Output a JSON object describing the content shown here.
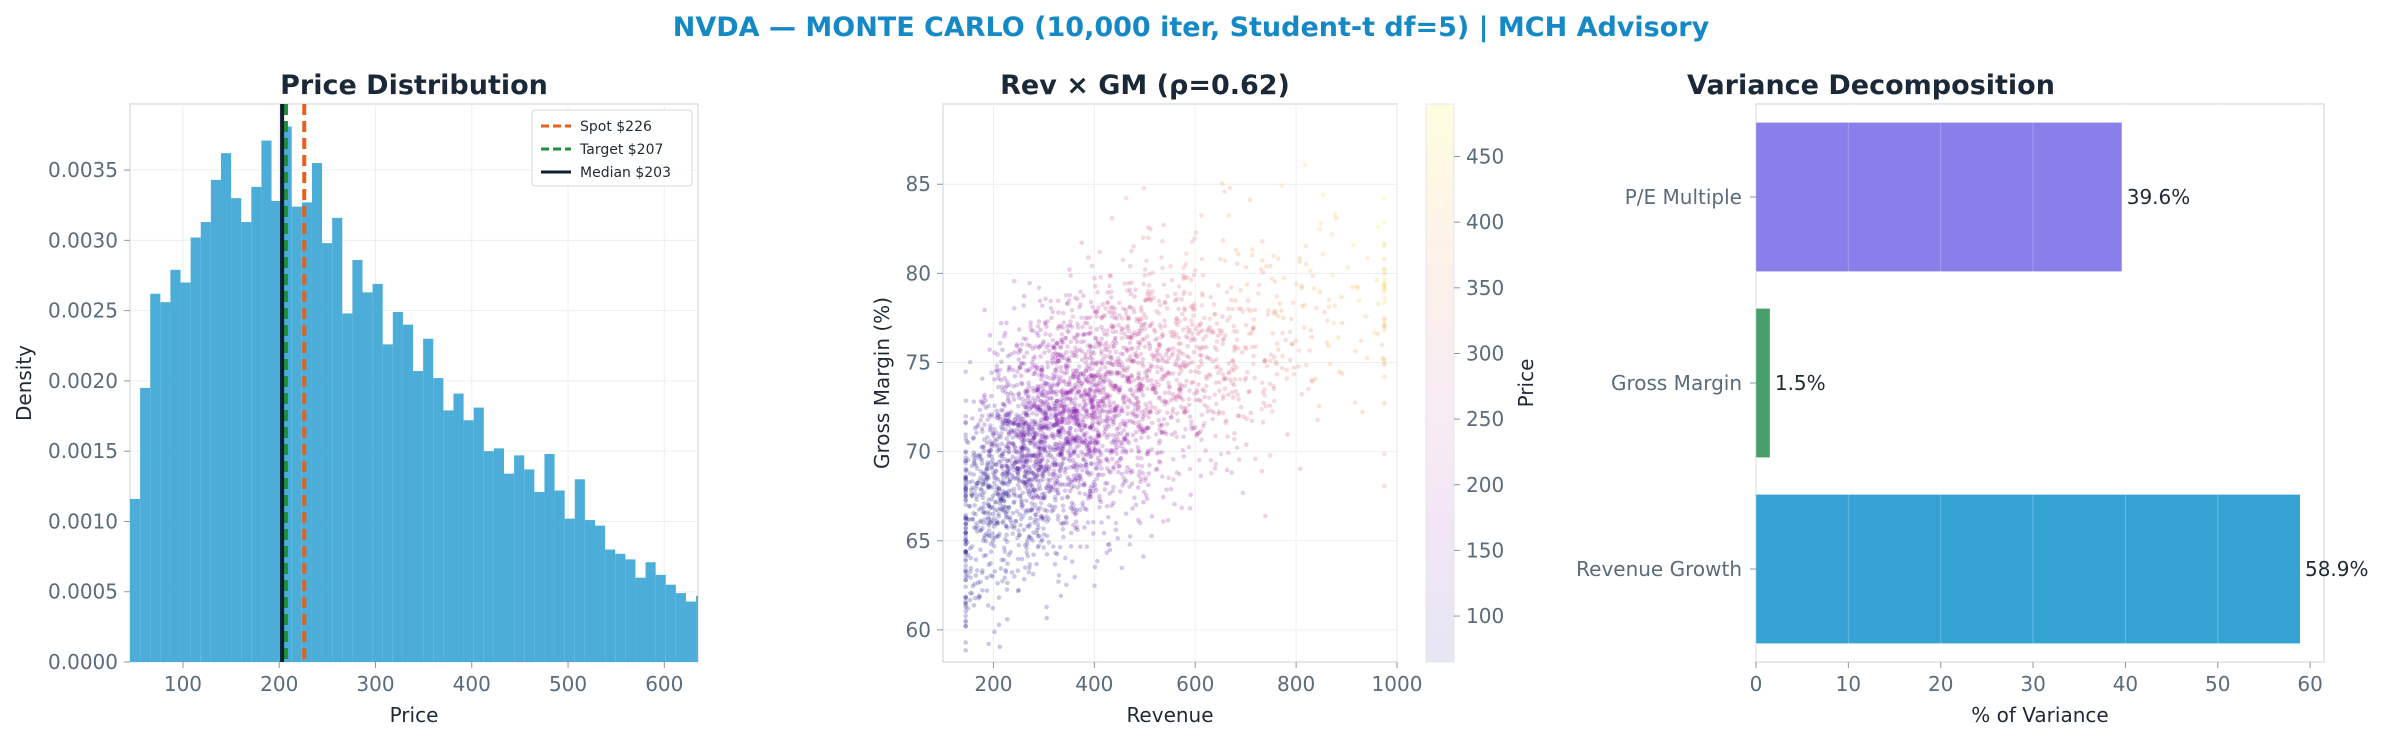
{
  "suptitle": "NVDA — MONTE CARLO (10,000 iter, Student-t df=5) | MCH Advisory",
  "colors": {
    "suptitle": "#1589c6",
    "hist": "#4badd8",
    "spot": "#e8601c",
    "target": "#1f8f3c",
    "median": "#0f1e2e",
    "bar_pe": "#8a7eea",
    "bar_gm": "#47a06a",
    "bar_rev": "#34a3d4"
  },
  "chart_data": [
    {
      "type": "bar",
      "subtype": "histogram",
      "title": "Price Distribution",
      "xlabel": "Price",
      "ylabel": "Density",
      "xlim": [
        45,
        635
      ],
      "ylim": [
        0,
        0.00397
      ],
      "xticks": [
        "100",
        "200",
        "300",
        "400",
        "500",
        "600"
      ],
      "yticks": [
        "0.0000",
        "0.0005",
        "0.0010",
        "0.0015",
        "0.0020",
        "0.0025",
        "0.0030",
        "0.0035"
      ],
      "bin_start": 45,
      "bin_width": 10.5,
      "values": [
        0.00116,
        0.00195,
        0.00262,
        0.00256,
        0.00279,
        0.0027,
        0.00302,
        0.00313,
        0.00343,
        0.00362,
        0.0033,
        0.00313,
        0.00338,
        0.00371,
        0.00328,
        0.00381,
        0.00324,
        0.00327,
        0.00355,
        0.00298,
        0.00316,
        0.00248,
        0.00286,
        0.00263,
        0.00269,
        0.00226,
        0.00249,
        0.0024,
        0.00207,
        0.0023,
        0.00202,
        0.00179,
        0.00191,
        0.00172,
        0.00181,
        0.0015,
        0.00152,
        0.00134,
        0.00147,
        0.00137,
        0.00121,
        0.00148,
        0.00122,
        0.00102,
        0.0013,
        0.00101,
        0.00097,
        0.0008,
        0.00077,
        0.00073,
        0.0006,
        0.00071,
        0.00062,
        0.00055,
        0.00049,
        0.00043,
        0.00047,
        0.00036,
        0.00044,
        0.00042
      ],
      "vlines": [
        {
          "name": "Spot $226",
          "x": 226,
          "style": "dashed",
          "color": "#e8601c"
        },
        {
          "name": "Target $207",
          "x": 207,
          "style": "dashed",
          "color": "#1f8f3c"
        },
        {
          "name": "Median $203",
          "x": 203,
          "style": "solid",
          "color": "#0f1e2e"
        }
      ],
      "legend_position": "top-right",
      "grid": true
    },
    {
      "type": "scatter",
      "title": "Rev × GM (ρ=0.62)",
      "xlabel": "Revenue",
      "ylabel": "Gross Margin (%)",
      "xlim": [
        100,
        1000
      ],
      "ylim": [
        58.2,
        89.5
      ],
      "xticks": [
        "200",
        "400",
        "600",
        "800",
        "1000"
      ],
      "yticks": [
        "60",
        "65",
        "70",
        "75",
        "80",
        "85"
      ],
      "n_points": 10000,
      "correlation": 0.62,
      "revenue_floor": 145,
      "colorbar": {
        "label": "Price",
        "range": [
          65,
          490
        ],
        "ticks": [
          "100",
          "150",
          "200",
          "250",
          "300",
          "350",
          "400",
          "450"
        ],
        "colormap": "plasma"
      },
      "grid": true
    },
    {
      "type": "bar",
      "orientation": "horizontal",
      "title": "Variance Decomposition",
      "xlabel": "% of Variance",
      "xlim": [
        0,
        61.5
      ],
      "xticks": [
        "0",
        "10",
        "20",
        "30",
        "40",
        "50",
        "60"
      ],
      "categories": [
        "P/E Multiple",
        "Gross Margin",
        "Revenue Growth"
      ],
      "values": [
        39.6,
        1.5,
        58.9
      ],
      "labels": [
        "39.6%",
        "1.5%",
        "58.9%"
      ],
      "grid": true
    }
  ]
}
